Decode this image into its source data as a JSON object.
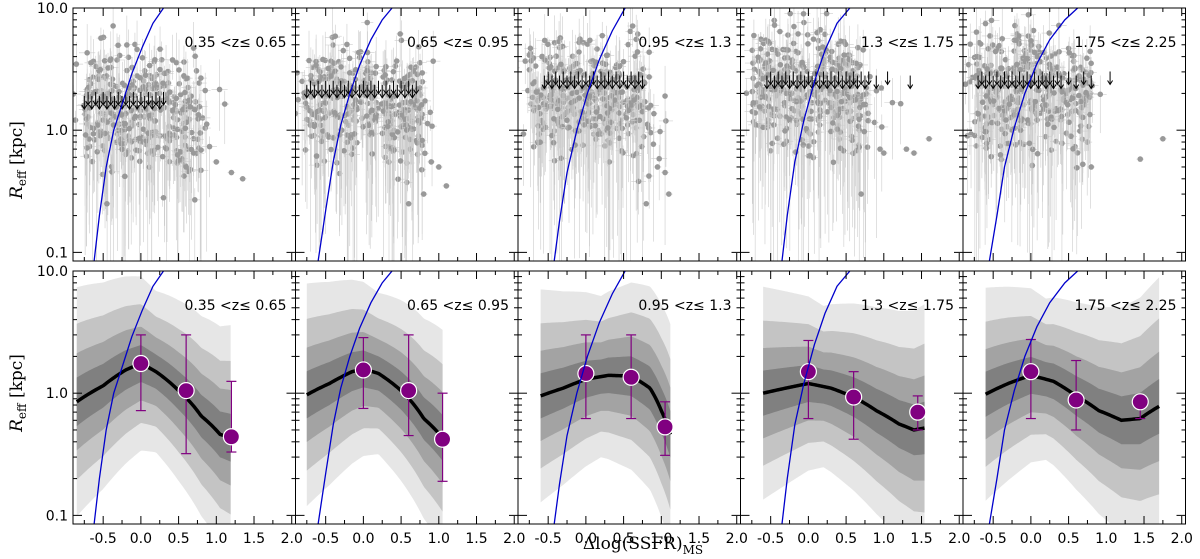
{
  "figure": {
    "xlabel": "Δlog(SSFR)",
    "xlabel_sub": "MS",
    "ylabel": "R",
    "ylabel_sub": "eff",
    "ylabel_unit": " [kpc]"
  },
  "colors": {
    "points": "#999999",
    "errorbars": "#cccccc",
    "upper_limits": "#000000",
    "model_curve": "#0000cc",
    "band_outer": "#e6e6e6",
    "band_2": "#c4c4c4",
    "band_3": "#a3a3a3",
    "band_inner": "#808080",
    "median_line": "#000000",
    "binned_points": "#800080"
  },
  "chart_data": {
    "type": "scatter",
    "layout": "2 rows x 5 columns, shared axes",
    "x_ticks": [
      "-0.5",
      "0.0",
      "0.5",
      "1.0",
      "1.5",
      "2.0"
    ],
    "x_tick_values": [
      -0.5,
      0.0,
      0.5,
      1.0,
      1.5,
      2.0
    ],
    "xlim": [
      -0.9,
      2.05
    ],
    "y_scale": "log",
    "y_ticks": [
      "0.1",
      "1.0",
      "10.0"
    ],
    "y_tick_values": [
      0.1,
      1.0,
      10.0
    ],
    "ylim": [
      0.085,
      10.0
    ],
    "panels": [
      {
        "z_label": "0.35 <z≤ 0.65",
        "row1": {
          "upper_limits": {
            "y": 1.7,
            "x": [
              -0.75,
              -0.7,
              -0.65,
              -0.6,
              -0.55,
              -0.5,
              -0.45,
              -0.4,
              -0.35,
              -0.3,
              -0.25,
              -0.2,
              -0.15,
              -0.1,
              -0.05,
              0.0,
              0.05,
              0.1,
              0.15,
              0.2,
              0.25,
              0.3
            ]
          },
          "outliers": [
            [
              0.7,
              0.65
            ],
            [
              0.6,
              0.5
            ],
            [
              1.0,
              0.55
            ],
            [
              1.2,
              0.45
            ],
            [
              1.35,
              0.4
            ],
            [
              0.3,
              0.28
            ],
            [
              -0.45,
              0.25
            ]
          ]
        },
        "row2": {
          "median_x": [
            -0.85,
            -0.5,
            -0.2,
            0.0,
            0.2,
            0.5,
            0.8,
            1.05,
            1.2
          ],
          "median_y": [
            0.85,
            1.15,
            1.55,
            1.75,
            1.5,
            1.05,
            0.65,
            0.46,
            0.43
          ],
          "band_width_dex": [
            0.14,
            0.28,
            0.45,
            0.66
          ],
          "binned_x": [
            0.0,
            0.6,
            1.2
          ],
          "binned_y": [
            1.75,
            1.05,
            0.44
          ],
          "binned_err_lo": [
            0.72,
            0.32,
            0.33
          ],
          "binned_err_hi": [
            3.0,
            3.0,
            1.25
          ]
        },
        "model_curve_x": [
          -0.62,
          -0.55,
          -0.46,
          -0.36,
          -0.24,
          -0.12,
          0.02,
          0.16,
          0.3
        ],
        "model_curve_y": [
          0.085,
          0.2,
          0.5,
          1.0,
          1.7,
          2.9,
          4.8,
          7.5,
          10.0
        ]
      },
      {
        "z_label": "0.65 <z≤ 0.95",
        "row1": {
          "upper_limits": {
            "y": 2.1,
            "x": [
              -0.75,
              -0.7,
              -0.65,
              -0.6,
              -0.55,
              -0.5,
              -0.45,
              -0.4,
              -0.35,
              -0.3,
              -0.25,
              -0.2,
              -0.15,
              -0.1,
              -0.05,
              0.0,
              0.05,
              0.1,
              0.15,
              0.2,
              0.25,
              0.3,
              0.35,
              0.4,
              0.45,
              0.5,
              0.55,
              0.6,
              0.65,
              0.7
            ]
          },
          "outliers": [
            [
              0.9,
              0.55
            ],
            [
              1.0,
              0.5
            ],
            [
              0.8,
              0.3
            ],
            [
              1.1,
              0.35
            ],
            [
              0.6,
              0.25
            ]
          ]
        },
        "row2": {
          "median_x": [
            -0.75,
            -0.45,
            -0.15,
            0.0,
            0.2,
            0.5,
            0.8,
            1.05
          ],
          "median_y": [
            0.97,
            1.2,
            1.5,
            1.58,
            1.45,
            1.05,
            0.62,
            0.43
          ],
          "band_width_dex": [
            0.14,
            0.28,
            0.45,
            0.66
          ],
          "binned_x": [
            0.0,
            0.6,
            1.05
          ],
          "binned_y": [
            1.55,
            1.05,
            0.42
          ],
          "binned_err_lo": [
            0.75,
            0.45,
            0.19
          ],
          "binned_err_hi": [
            2.85,
            3.0,
            1.0
          ]
        },
        "model_curve_x": [
          -0.6,
          -0.5,
          -0.4,
          -0.3,
          -0.18,
          -0.05,
          0.1,
          0.25,
          0.38
        ],
        "model_curve_y": [
          0.085,
          0.22,
          0.55,
          1.1,
          2.0,
          3.4,
          5.5,
          8.0,
          10.0
        ]
      },
      {
        "z_label": "0.95 <z≤ 1.3",
        "row1": {
          "upper_limits": {
            "y": 2.5,
            "x": [
              -0.55,
              -0.5,
              -0.45,
              -0.4,
              -0.35,
              -0.3,
              -0.25,
              -0.2,
              -0.15,
              -0.1,
              -0.05,
              0.0,
              0.05,
              0.1,
              0.15,
              0.2,
              0.25,
              0.3,
              0.35,
              0.4,
              0.45,
              0.5,
              0.55,
              0.6,
              0.65,
              0.7,
              0.75
            ]
          },
          "outliers": [
            [
              0.95,
              0.5
            ],
            [
              1.05,
              0.45
            ],
            [
              1.1,
              0.3
            ],
            [
              0.8,
              0.25
            ]
          ]
        },
        "row2": {
          "median_x": [
            -0.6,
            -0.3,
            0.0,
            0.3,
            0.6,
            0.85,
            1.0,
            1.12
          ],
          "median_y": [
            0.95,
            1.1,
            1.3,
            1.4,
            1.38,
            1.1,
            0.72,
            0.46
          ],
          "band_width_dex": [
            0.14,
            0.28,
            0.45,
            0.66
          ],
          "binned_x": [
            0.0,
            0.6,
            1.05
          ],
          "binned_y": [
            1.45,
            1.35,
            0.53
          ],
          "binned_err_lo": [
            0.62,
            0.62,
            0.31
          ],
          "binned_err_hi": [
            3.0,
            3.0,
            0.85
          ]
        },
        "model_curve_x": [
          -0.42,
          -0.35,
          -0.25,
          -0.12,
          0.02,
          0.18,
          0.35,
          0.52
        ],
        "model_curve_y": [
          0.085,
          0.18,
          0.45,
          1.0,
          2.0,
          3.8,
          6.5,
          10.0
        ]
      },
      {
        "z_label": "1.3 <z≤ 1.75",
        "row1": {
          "upper_limits": {
            "y": 2.5,
            "x": [
              -0.55,
              -0.5,
              -0.45,
              -0.4,
              -0.35,
              -0.3,
              -0.25,
              -0.2,
              -0.15,
              -0.1,
              -0.05,
              0.0,
              0.05,
              0.1,
              0.15,
              0.2,
              0.25,
              0.3,
              0.35,
              0.4,
              0.45,
              0.5,
              0.55,
              0.6,
              0.65,
              0.7,
              0.75,
              0.8,
              0.9,
              1.05,
              1.35
            ]
          },
          "outliers": [
            [
              0.95,
              0.7
            ],
            [
              1.0,
              0.65
            ],
            [
              1.3,
              0.7
            ],
            [
              1.6,
              0.85
            ],
            [
              1.4,
              0.65
            ],
            [
              0.7,
              0.3
            ]
          ]
        },
        "row2": {
          "median_x": [
            -0.6,
            -0.3,
            0.0,
            0.3,
            0.6,
            0.9,
            1.2,
            1.4,
            1.55
          ],
          "median_y": [
            1.0,
            1.1,
            1.2,
            1.1,
            0.93,
            0.72,
            0.56,
            0.5,
            0.52
          ],
          "band_width_dex": [
            0.14,
            0.28,
            0.45,
            0.66
          ],
          "binned_x": [
            0.0,
            0.6,
            1.45
          ],
          "binned_y": [
            1.5,
            0.93,
            0.7
          ],
          "binned_err_lo": [
            0.62,
            0.42,
            0.5
          ],
          "binned_err_hi": [
            2.7,
            1.5,
            0.95
          ]
        },
        "model_curve_x": [
          -0.35,
          -0.28,
          -0.18,
          -0.06,
          0.08,
          0.22,
          0.38,
          0.55
        ],
        "model_curve_y": [
          0.085,
          0.2,
          0.55,
          1.2,
          2.5,
          4.5,
          7.5,
          10.0
        ]
      },
      {
        "z_label": "1.75 <z≤ 2.25",
        "row1": {
          "upper_limits": {
            "y": 2.5,
            "x": [
              -0.7,
              -0.65,
              -0.6,
              -0.55,
              -0.5,
              -0.45,
              -0.4,
              -0.35,
              -0.3,
              -0.25,
              -0.2,
              -0.15,
              -0.1,
              -0.05,
              0.0,
              0.05,
              0.1,
              0.15,
              0.2,
              0.25,
              0.3,
              0.35,
              0.4,
              0.5,
              0.6,
              0.7,
              0.8,
              1.05
            ]
          },
          "outliers": [
            [
              1.45,
              0.58
            ],
            [
              1.75,
              0.85
            ],
            [
              0.8,
              0.5
            ]
          ]
        },
        "row2": {
          "median_x": [
            -0.6,
            -0.3,
            0.0,
            0.3,
            0.6,
            0.9,
            1.2,
            1.45,
            1.7
          ],
          "median_y": [
            0.98,
            1.2,
            1.4,
            1.25,
            0.95,
            0.72,
            0.6,
            0.62,
            0.78
          ],
          "band_width_dex": [
            0.14,
            0.28,
            0.45,
            0.66
          ],
          "binned_x": [
            0.0,
            0.6,
            1.45
          ],
          "binned_y": [
            1.5,
            0.88,
            0.85
          ],
          "binned_err_lo": [
            0.62,
            0.5,
            0.62
          ],
          "binned_err_hi": [
            2.75,
            1.85,
            0.95
          ]
        },
        "model_curve_x": [
          -0.55,
          -0.45,
          -0.35,
          -0.22,
          -0.08,
          0.08,
          0.25,
          0.45,
          0.62
        ],
        "model_curve_y": [
          0.085,
          0.2,
          0.5,
          1.05,
          2.0,
          3.5,
          5.5,
          8.0,
          10.0
        ]
      }
    ]
  }
}
